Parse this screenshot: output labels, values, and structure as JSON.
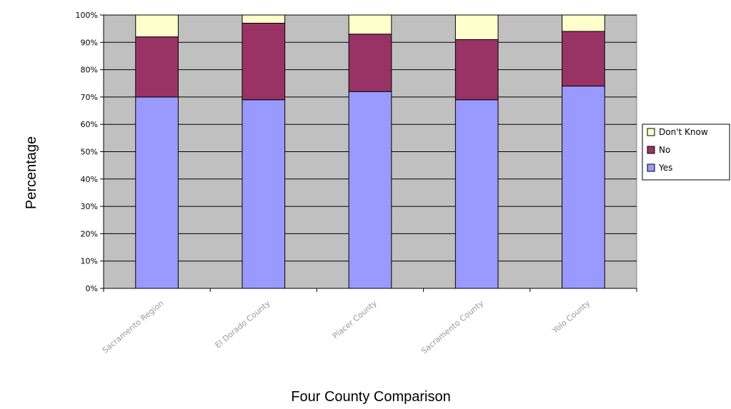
{
  "chart_data": {
    "type": "bar",
    "stacked": true,
    "percent_stacked": true,
    "title": "",
    "xlabel": "Four County Comparison",
    "ylabel": "Percentage",
    "categories": [
      "Sacramento Region",
      "El Dorado County",
      "Placer County",
      "Sacramento County",
      "Yolo County"
    ],
    "series": [
      {
        "name": "Yes",
        "color": "#9999ff",
        "values": [
          70,
          69,
          72,
          69,
          74
        ]
      },
      {
        "name": "No",
        "color": "#993366",
        "values": [
          22,
          28,
          21,
          22,
          20
        ]
      },
      {
        "name": "Don't Know",
        "color": "#ffffcc",
        "values": [
          8,
          3,
          7,
          9,
          6
        ]
      }
    ],
    "yticks": [
      "0%",
      "10%",
      "20%",
      "30%",
      "40%",
      "50%",
      "60%",
      "70%",
      "80%",
      "90%",
      "100%"
    ],
    "ylim": [
      0,
      100
    ],
    "legend_order": [
      "Don't Know",
      "No",
      "Yes"
    ],
    "legend_position": "right",
    "plot_background": "#c0c0c0",
    "grid": true
  }
}
